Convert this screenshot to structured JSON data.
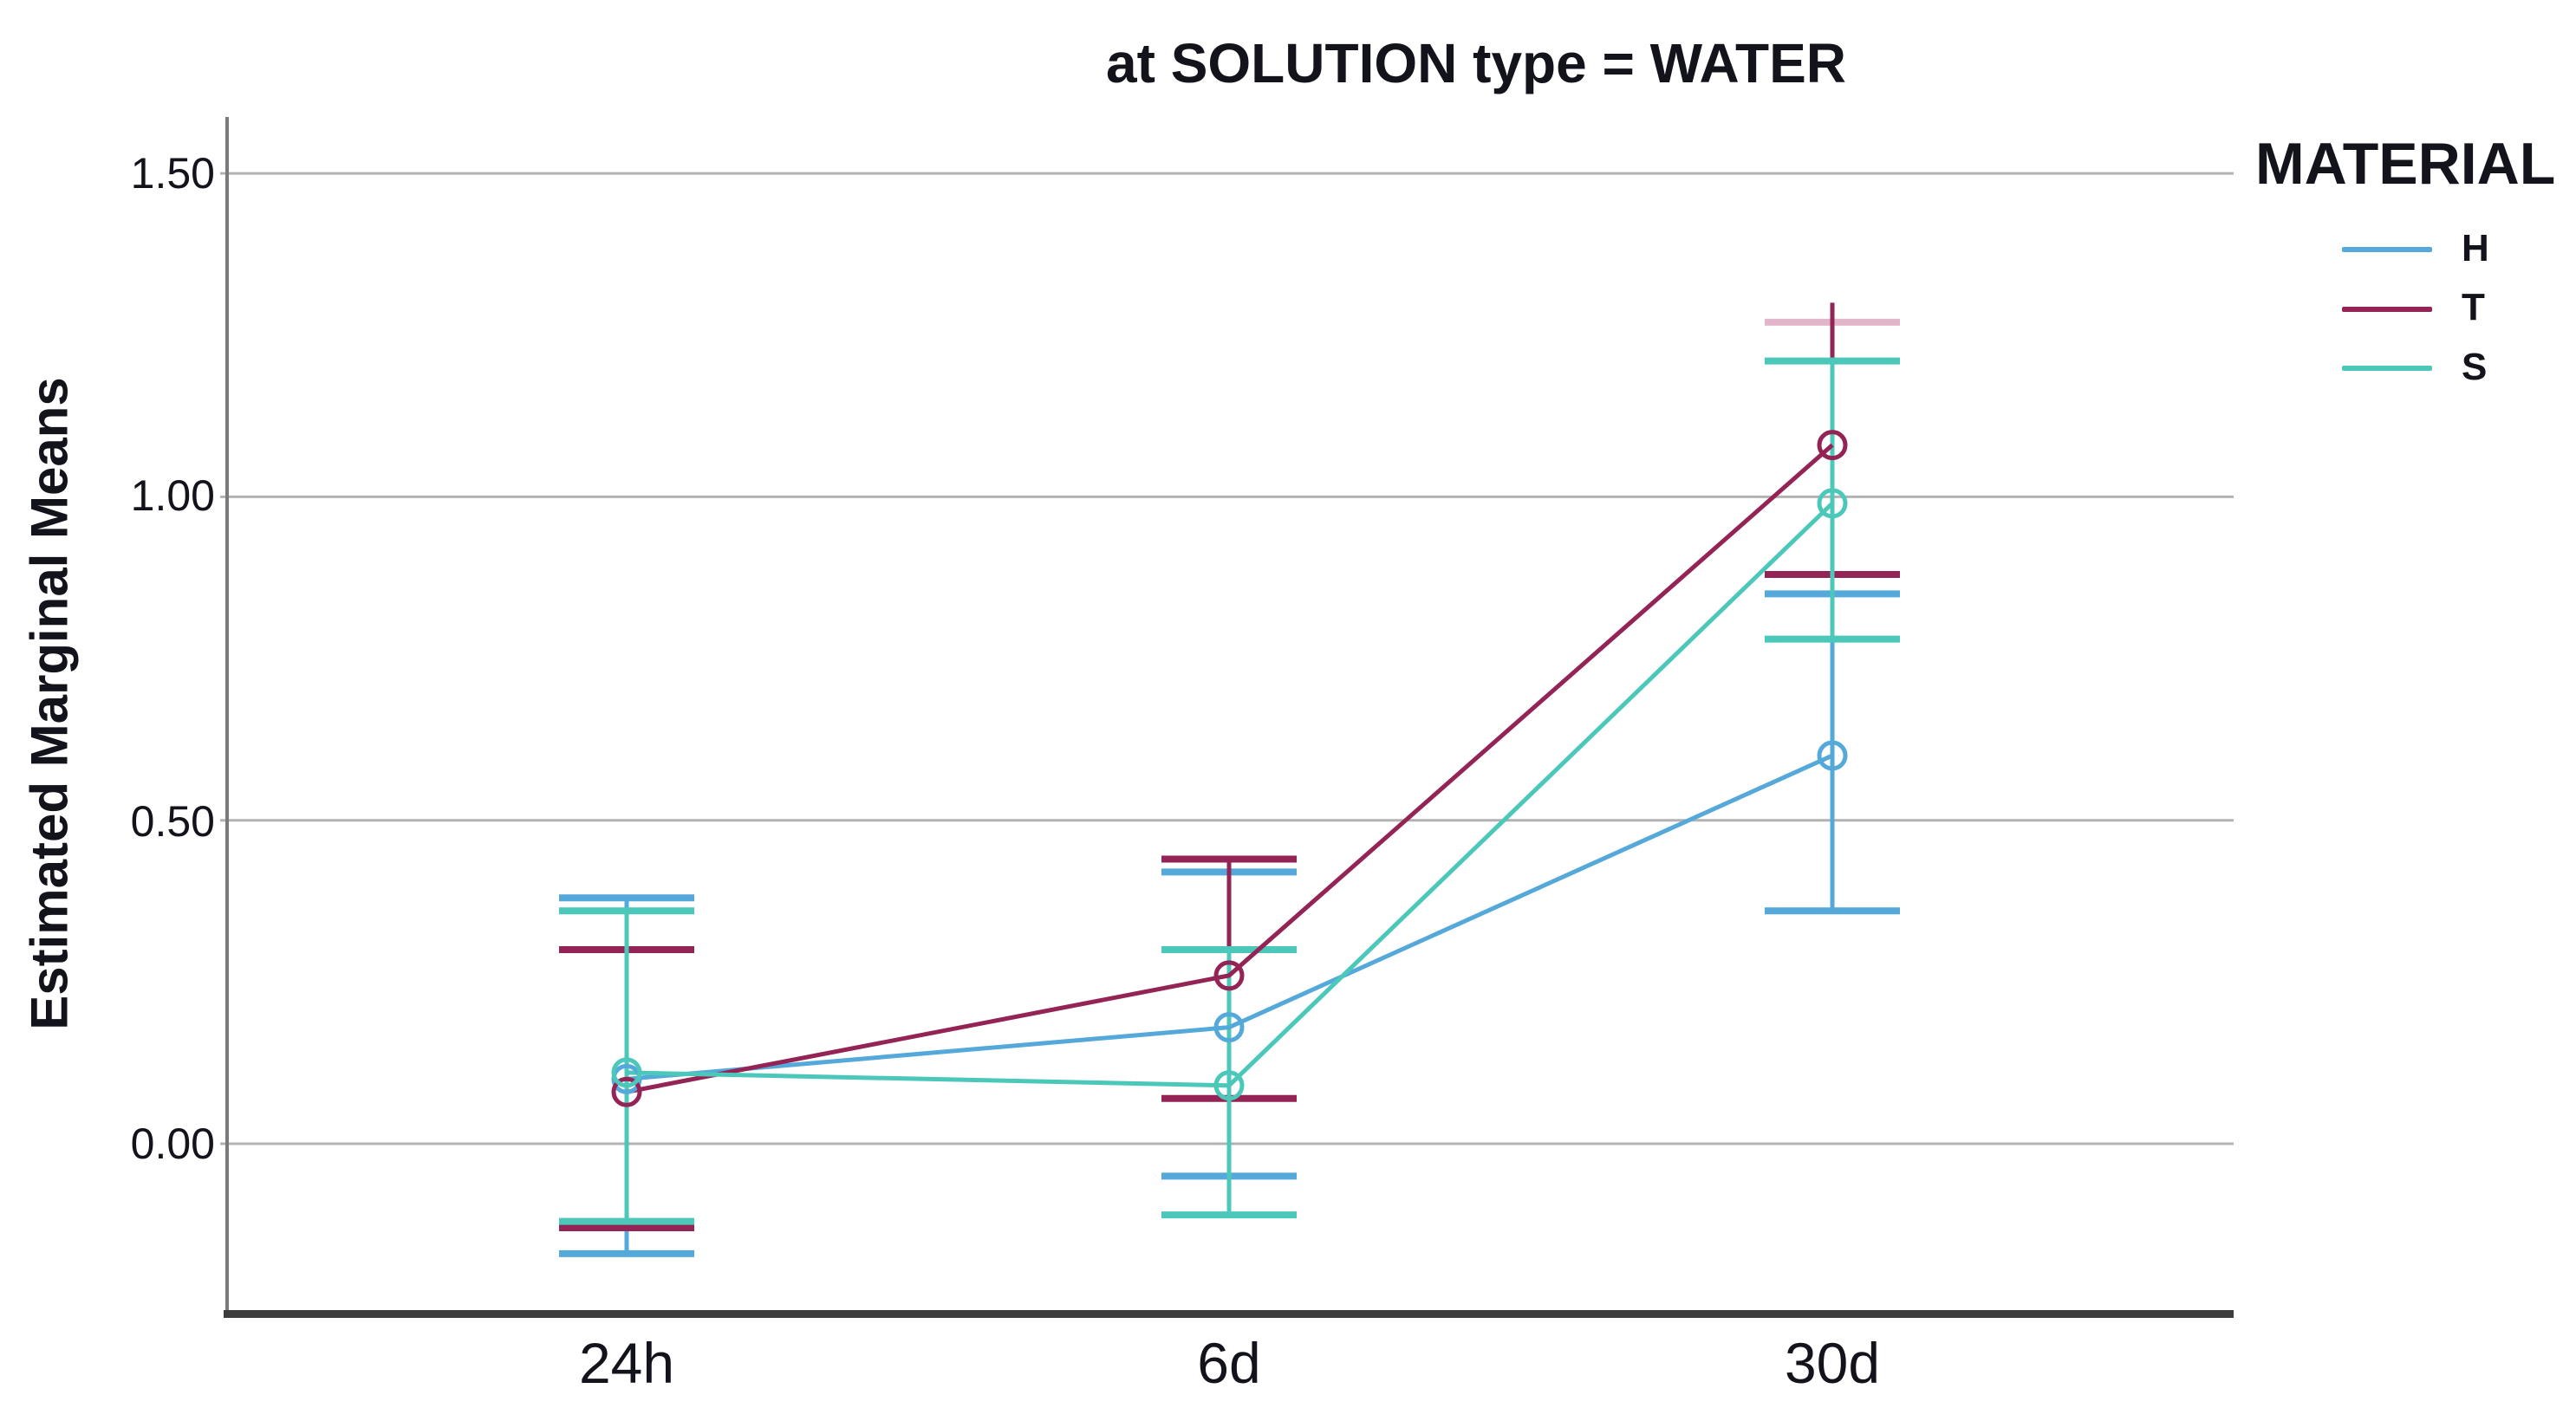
{
  "title": "at SOLUTION type = WATER",
  "legend": {
    "title": "MATERIAL",
    "entries": [
      {
        "label": "H",
        "color": "#55a9da"
      },
      {
        "label": "T",
        "color": "#942456"
      },
      {
        "label": "S",
        "color": "#4cc8ba"
      }
    ]
  },
  "style": {
    "background": "#ffffff",
    "gridline": "#b2b2b2",
    "y_axis_line": "#7a7a7a",
    "x_axis_bar": "#3d3d3d",
    "text": "#13131c",
    "t_top_cap_pink": "#e2b6ca"
  },
  "chart_data": {
    "type": "line",
    "title": "at SOLUTION type = WATER",
    "xlabel": "",
    "ylabel": "Estimated Marginal Means",
    "categories": [
      "24h",
      "6d",
      "30d"
    ],
    "ytick_labels": [
      "1.50",
      "1.00",
      "0.50",
      "0.00"
    ],
    "yticks": [
      1.5,
      1.0,
      0.5,
      0.0
    ],
    "ylim": [
      -0.26,
      1.59
    ],
    "grid": true,
    "legend_position": "right",
    "legend_title": "MATERIAL",
    "marker": "open-circle",
    "error_bars": "95% CI",
    "series": [
      {
        "name": "H",
        "color": "#55a9da",
        "means": [
          0.1,
          0.18,
          0.6
        ],
        "ci_low": [
          -0.17,
          -0.05,
          0.36
        ],
        "ci_high": [
          0.38,
          0.42,
          0.85
        ]
      },
      {
        "name": "T",
        "color": "#942456",
        "means": [
          0.08,
          0.26,
          1.08
        ],
        "ci_low": [
          -0.13,
          0.07,
          0.88
        ],
        "ci_high": [
          0.3,
          0.44,
          1.27
        ],
        "hi_cap_colors": [
          null,
          null,
          "#e2b6ca"
        ],
        "hi_whisker_ext": [
          null,
          null,
          1.3
        ]
      },
      {
        "name": "S",
        "color": "#4cc8ba",
        "means": [
          0.11,
          0.09,
          0.99
        ],
        "ci_low": [
          -0.12,
          -0.11,
          0.78
        ],
        "ci_high": [
          0.36,
          0.3,
          1.21
        ]
      }
    ]
  }
}
